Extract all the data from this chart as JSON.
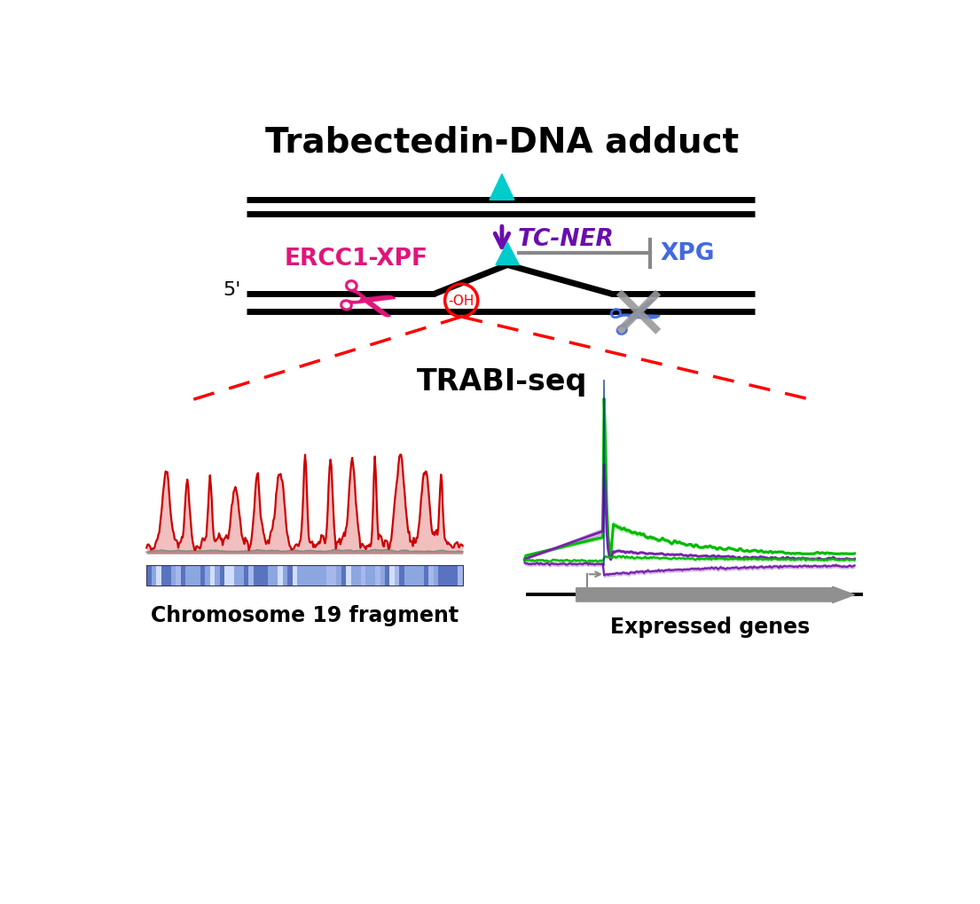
{
  "title": "Trabectedin-DNA adduct",
  "tc_ner_label": "TC-NER",
  "ercc1_xpf_label": "ERCC1-XPF",
  "xpg_label": "XPG",
  "trabi_seq_label": "TRABI-seq",
  "chr19_label": "Chromosome 19 fragment",
  "expressed_label": "Expressed genes",
  "five_prime_label": "5'",
  "oh_label": "-OH",
  "dna_color": "#000000",
  "cyan_color": "#00CCCC",
  "purple_color": "#6A0DAD",
  "pink_color": "#E0157A",
  "blue_color": "#4169E1",
  "red_color": "#CC0000",
  "gray_color": "#888888",
  "fig_width": 11.05,
  "fig_height": 10.2
}
